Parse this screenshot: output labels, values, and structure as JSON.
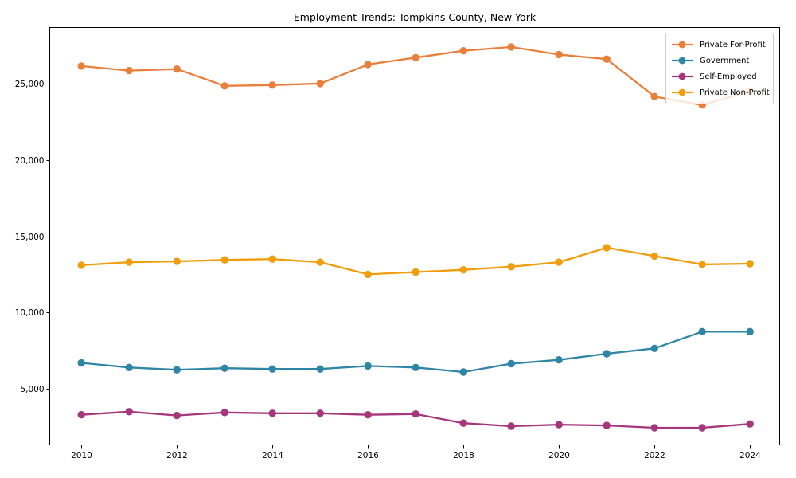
{
  "chart_data": {
    "type": "line",
    "title": "Employment Trends: Tompkins County, New York",
    "xlabel": "",
    "ylabel": "",
    "x": [
      2010,
      2011,
      2012,
      2013,
      2014,
      2015,
      2016,
      2017,
      2018,
      2019,
      2020,
      2021,
      2022,
      2023,
      2024
    ],
    "series": [
      {
        "name": "Private For-Profit",
        "color": "#e8803c",
        "values": [
          26150,
          25850,
          25950,
          24850,
          24900,
          25000,
          26250,
          26700,
          27150,
          27400,
          26900,
          26600,
          24150,
          23600,
          24500
        ]
      },
      {
        "name": "Government",
        "color": "#2f85a5",
        "values": [
          6700,
          6400,
          6250,
          6350,
          6300,
          6300,
          6500,
          6400,
          6100,
          6650,
          6900,
          7300,
          7650,
          8750,
          8750
        ]
      },
      {
        "name": "Self-Employed",
        "color": "#a6377d",
        "values": [
          3300,
          3500,
          3250,
          3450,
          3400,
          3400,
          3300,
          3350,
          2750,
          2550,
          2650,
          2600,
          2450,
          2450,
          2700
        ]
      },
      {
        "name": "Private Non-Profit",
        "color": "#f09d0e",
        "values": [
          13100,
          13300,
          13350,
          13450,
          13500,
          13300,
          12500,
          12650,
          12800,
          13000,
          13300,
          14250,
          13700,
          13150,
          13200
        ]
      }
    ],
    "xticks": [
      2010,
      2012,
      2014,
      2016,
      2018,
      2020,
      2022,
      2024
    ],
    "xticklabels": [
      "2010",
      "2012",
      "2014",
      "2016",
      "2018",
      "2020",
      "2022",
      "2024"
    ],
    "yticks": [
      5000,
      10000,
      15000,
      20000,
      25000
    ],
    "yticklabels": [
      "5,000",
      "10,000",
      "15,000",
      "20,000",
      "25,000"
    ],
    "xlim": [
      2009.33,
      2024.63
    ],
    "ylim": [
      1300,
      28700
    ],
    "grid": false,
    "legend_position": "upper right",
    "marker": "circle"
  },
  "style": {
    "spine_color": "#000000",
    "tick_color": "#000000",
    "legend_border_color": "#cccccc",
    "background": "#ffffff"
  }
}
